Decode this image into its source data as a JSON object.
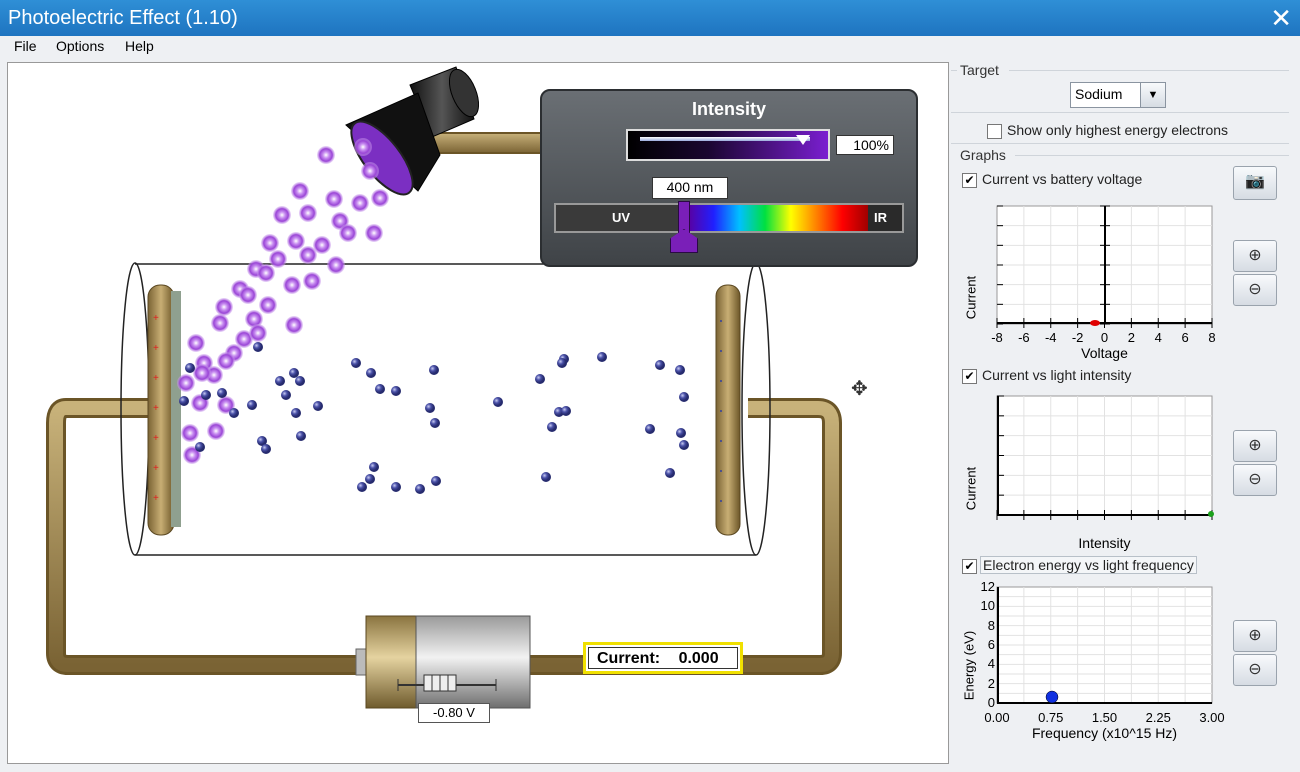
{
  "window": {
    "title": "Photoelectric Effect (1.10)",
    "close_glyph": "✕"
  },
  "menu": [
    {
      "label": "File"
    },
    {
      "label": "Options"
    },
    {
      "label": "Help"
    }
  ],
  "intensity": {
    "title": "Intensity",
    "percent": "100%",
    "wavelength": "400 nm",
    "uv_label": "UV",
    "ir_label": "IR"
  },
  "battery": {
    "voltage": "-0.80 V"
  },
  "current": {
    "label": "Current:",
    "value": "0.000"
  },
  "panel": {
    "target_label": "Target",
    "target_value": "Sodium",
    "highest_energy_label": "Show only highest energy electrons",
    "highest_energy_checked": false,
    "graphs_label": "Graphs",
    "camera_icon": "camera-icon",
    "graph1": {
      "label": "Current vs battery voltage",
      "checked": true,
      "ylabel": "Current",
      "xlabel": "Voltage",
      "xticks": [
        "-8",
        "-6",
        "-4",
        "-2",
        "0",
        "2",
        "4",
        "6",
        "8"
      ]
    },
    "graph2": {
      "label": "Current vs light intensity",
      "checked": true,
      "ylabel": "Current",
      "xlabel": "Intensity"
    },
    "graph3": {
      "label": "Electron energy vs light frequency",
      "checked": true,
      "ylabel": "Energy (eV)",
      "xlabel": "Frequency (x10^15 Hz)",
      "yticks": [
        "12",
        "10",
        "8",
        "6",
        "4",
        "2",
        "0"
      ],
      "xticks": [
        "0.00",
        "0.75",
        "1.50",
        "2.25",
        "3.00"
      ]
    }
  },
  "colors": {
    "wire": "#8b7340",
    "photon": "#9a45d6",
    "electron": "#39408f",
    "title_bar": "#2580c8"
  }
}
